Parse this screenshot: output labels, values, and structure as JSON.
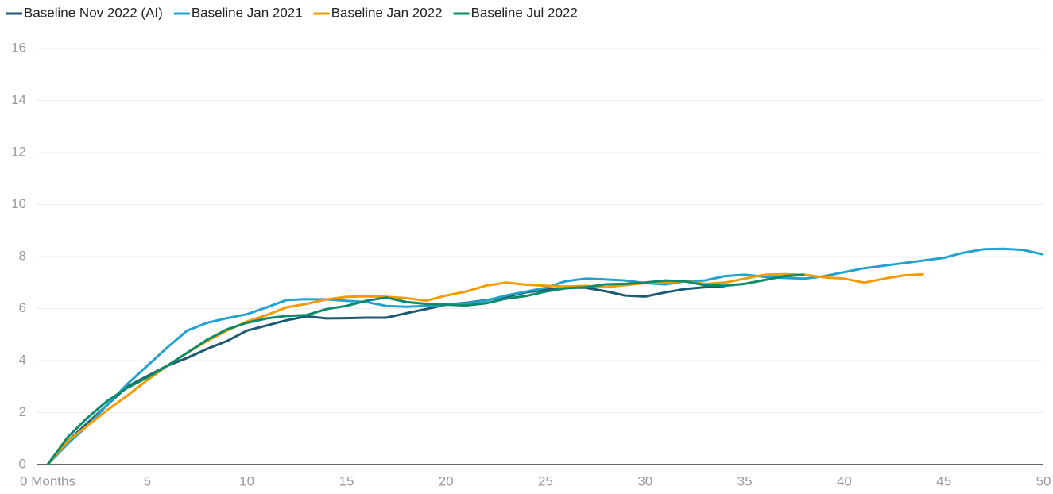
{
  "chart_data": {
    "type": "line",
    "x": [
      0,
      1,
      2,
      3,
      4,
      5,
      6,
      7,
      8,
      9,
      10,
      11,
      12,
      13,
      14,
      15,
      16,
      17,
      18,
      19,
      20,
      21,
      22,
      23,
      24,
      25,
      26,
      27,
      28,
      29,
      30,
      31,
      32,
      33,
      34,
      35,
      36,
      37,
      38,
      39,
      40,
      41,
      42,
      43,
      44,
      45,
      46,
      47,
      48,
      49,
      50
    ],
    "series": [
      {
        "name": "Baseline Nov 2022 (AI)",
        "color": "#1b5a72",
        "values": [
          0,
          0.9,
          1.6,
          2.3,
          3.0,
          3.4,
          3.8,
          4.1,
          4.45,
          4.75,
          5.15,
          5.35,
          5.55,
          5.7,
          5.62,
          5.63,
          5.65,
          5.65,
          5.82,
          5.98,
          6.15,
          6.22,
          6.32,
          6.45,
          6.62,
          6.72,
          6.8,
          6.8,
          6.67,
          6.5,
          6.46,
          6.62,
          6.75,
          6.82,
          6.86,
          null,
          null,
          null,
          null,
          null,
          null,
          null,
          null,
          null,
          null,
          null,
          null,
          null,
          null,
          null,
          null
        ]
      },
      {
        "name": "Baseline Jan 2021",
        "color": "#22a3cf",
        "values": [
          0,
          0.8,
          1.5,
          2.3,
          3.1,
          3.8,
          4.5,
          5.15,
          5.45,
          5.63,
          5.78,
          6.05,
          6.33,
          6.36,
          6.35,
          6.3,
          6.25,
          6.1,
          6.07,
          6.1,
          6.15,
          6.2,
          6.3,
          6.5,
          6.65,
          6.8,
          7.05,
          7.15,
          7.12,
          7.08,
          6.98,
          6.93,
          7.05,
          7.08,
          7.25,
          7.3,
          7.22,
          7.18,
          7.15,
          7.25,
          7.4,
          7.55,
          7.65,
          7.75,
          7.85,
          7.95,
          8.15,
          8.28,
          8.3,
          8.25,
          8.08
        ]
      },
      {
        "name": "Baseline Jan 2022",
        "color": "#f59b00",
        "values": [
          0,
          0.9,
          1.5,
          2.1,
          2.65,
          3.25,
          3.8,
          4.3,
          4.75,
          5.15,
          5.5,
          5.75,
          6.05,
          6.18,
          6.35,
          6.45,
          6.47,
          6.45,
          6.4,
          6.3,
          6.5,
          6.65,
          6.88,
          7.0,
          6.92,
          6.88,
          6.85,
          6.87,
          6.82,
          6.9,
          6.98,
          7.02,
          7.05,
          6.95,
          7.0,
          7.15,
          7.3,
          7.32,
          7.3,
          7.2,
          7.15,
          7.0,
          7.15,
          7.28,
          7.32,
          null,
          null,
          null,
          null,
          null,
          null
        ]
      },
      {
        "name": "Baseline Jul 2022",
        "color": "#0c8b6a",
        "values": [
          0,
          1.05,
          1.8,
          2.45,
          2.95,
          3.35,
          3.8,
          4.3,
          4.8,
          5.2,
          5.45,
          5.62,
          5.72,
          5.75,
          5.98,
          6.1,
          6.3,
          6.42,
          6.25,
          6.18,
          6.15,
          6.12,
          6.2,
          6.38,
          6.48,
          6.65,
          6.78,
          6.82,
          6.93,
          6.95,
          7.0,
          7.08,
          7.05,
          6.9,
          6.88,
          6.95,
          7.1,
          7.25,
          7.3,
          null,
          null,
          null,
          null,
          null,
          null,
          null,
          null,
          null,
          null,
          null,
          null
        ]
      }
    ],
    "xlim": [
      0,
      50
    ],
    "xticks": [
      {
        "value": 0,
        "label": "0 Months"
      },
      5,
      10,
      15,
      20,
      25,
      30,
      35,
      40,
      45,
      50
    ],
    "ylim": [
      0,
      16
    ],
    "yticks": [
      0,
      2,
      4,
      6,
      8,
      10,
      12,
      14,
      16
    ],
    "grid": true,
    "legend": "top"
  }
}
